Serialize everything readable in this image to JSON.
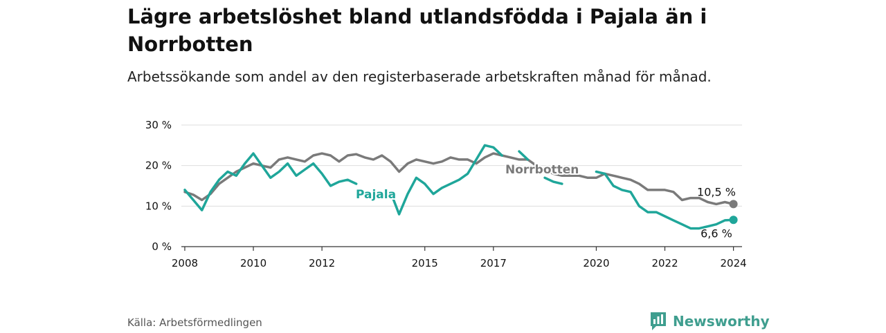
{
  "title": "Lägre arbetslöshet bland utlandsfödda i Pajala än i Norrbotten",
  "subtitle": "Arbetssökande som andel av den registerbaserade arbetskraften månad för månad.",
  "source": "Källa: Arbetsförmedlingen",
  "brand": "Newsworthy",
  "colors": {
    "norrbotten": "#7a7a7a",
    "pajala": "#1fa69a",
    "brand": "#3f9e8f",
    "grid": "#dddddd",
    "axis": "#333333"
  },
  "chart_data": {
    "type": "line",
    "title": "Lägre arbetslöshet bland utlandsfödda i Pajala än i Norrbotten",
    "xlabel": "",
    "ylabel": "",
    "xlim": [
      2007.9,
      2024.25
    ],
    "ylim": [
      0,
      30
    ],
    "yticks": [
      0,
      10,
      20,
      30
    ],
    "ytick_labels": [
      "0 %",
      "10 %",
      "20 %",
      "30 %"
    ],
    "xticks": [
      2008,
      2010,
      2012,
      2015,
      2017,
      2020,
      2022,
      2024
    ],
    "xtick_labels": [
      "2008",
      "2010",
      "2012",
      "2015",
      "2017",
      "2020",
      "2022",
      "2024"
    ],
    "grid": true,
    "series": [
      {
        "name": "Norrbotten",
        "label": "Norrbotten",
        "end_label": "10,5 %",
        "x": [
          2008.0,
          2008.25,
          2008.5,
          2008.75,
          2009.0,
          2009.25,
          2009.5,
          2009.75,
          2010.0,
          2010.25,
          2010.5,
          2010.75,
          2011.0,
          2011.25,
          2011.5,
          2011.75,
          2012.0,
          2012.25,
          2012.5,
          2012.75,
          2013.0,
          2013.25,
          2013.5,
          2013.75,
          2014.0,
          2014.25,
          2014.5,
          2014.75,
          2015.0,
          2015.25,
          2015.5,
          2015.75,
          2016.0,
          2016.25,
          2016.5,
          2016.75,
          2017.0,
          2017.25,
          2017.5,
          2017.75,
          2018.0,
          2018.25,
          2018.5,
          2018.75,
          2019.0,
          2019.25,
          2019.5,
          2019.75,
          2020.0,
          2020.25,
          2020.5,
          2020.75,
          2021.0,
          2021.25,
          2021.5,
          2021.75,
          2022.0,
          2022.25,
          2022.5,
          2022.75,
          2023.0,
          2023.25,
          2023.5,
          2023.75,
          2024.0
        ],
        "values": [
          13.5,
          12.8,
          11.5,
          13.0,
          15.5,
          17.0,
          18.5,
          19.5,
          20.5,
          20.0,
          19.5,
          21.5,
          22.0,
          21.5,
          21.0,
          22.5,
          23.0,
          22.5,
          21.0,
          22.5,
          22.8,
          22.0,
          21.5,
          22.5,
          21.0,
          18.5,
          20.5,
          21.5,
          21.0,
          20.5,
          21.0,
          22.0,
          21.5,
          21.5,
          20.5,
          22.0,
          23.0,
          22.5,
          22.0,
          21.5,
          21.5,
          20.0,
          19.0,
          18.0,
          17.5,
          17.5,
          17.5,
          17.0,
          17.0,
          18.0,
          17.5,
          17.0,
          16.5,
          15.5,
          14.0,
          14.0,
          14.0,
          13.5,
          11.5,
          12.0,
          12.0,
          11.0,
          10.5,
          11.0,
          10.5
        ]
      },
      {
        "name": "Pajala",
        "label": "Pajala",
        "end_label": "6,6 %",
        "x": [
          2008.0,
          2008.25,
          2008.5,
          2008.75,
          2009.0,
          2009.25,
          2009.5,
          2009.75,
          2010.0,
          2010.25,
          2010.5,
          2010.75,
          2011.0,
          2011.25,
          2011.5,
          2011.75,
          2012.0,
          2012.25,
          2012.5,
          2012.75,
          2013.0,
          2013.25,
          2013.5,
          2013.75,
          2014.0,
          2014.25,
          2014.5,
          2014.75,
          2015.0,
          2015.25,
          2015.5,
          2015.75,
          2016.0,
          2016.25,
          2016.5,
          2016.75,
          2017.0,
          2017.25,
          2017.5,
          2017.75,
          2018.0,
          2018.25,
          2018.5,
          2018.75,
          2019.0,
          2019.25,
          2019.5,
          2019.75,
          2020.0,
          2020.25,
          2020.5,
          2020.75,
          2021.0,
          2021.25,
          2021.5,
          2021.75,
          2022.0,
          2022.25,
          2022.5,
          2022.75,
          2023.0,
          2023.25,
          2023.5,
          2023.75,
          2024.0
        ],
        "values": [
          14.0,
          11.5,
          9.0,
          13.5,
          16.5,
          18.5,
          17.5,
          20.5,
          23.0,
          20.0,
          17.0,
          18.5,
          20.5,
          17.5,
          19.0,
          20.5,
          18.0,
          15.0,
          16.0,
          16.5,
          15.5,
          null,
          null,
          null,
          13.5,
          8.0,
          13.0,
          17.0,
          15.5,
          13.0,
          14.5,
          15.5,
          16.5,
          18.0,
          21.5,
          25.0,
          24.5,
          22.5,
          null,
          23.5,
          21.5,
          null,
          17.0,
          16.0,
          15.5,
          null,
          null,
          null,
          18.5,
          18.0,
          15.0,
          14.0,
          13.5,
          10.0,
          8.5,
          8.5,
          7.5,
          6.5,
          5.5,
          4.5,
          4.5,
          5.0,
          5.5,
          6.5,
          6.6
        ]
      }
    ]
  }
}
